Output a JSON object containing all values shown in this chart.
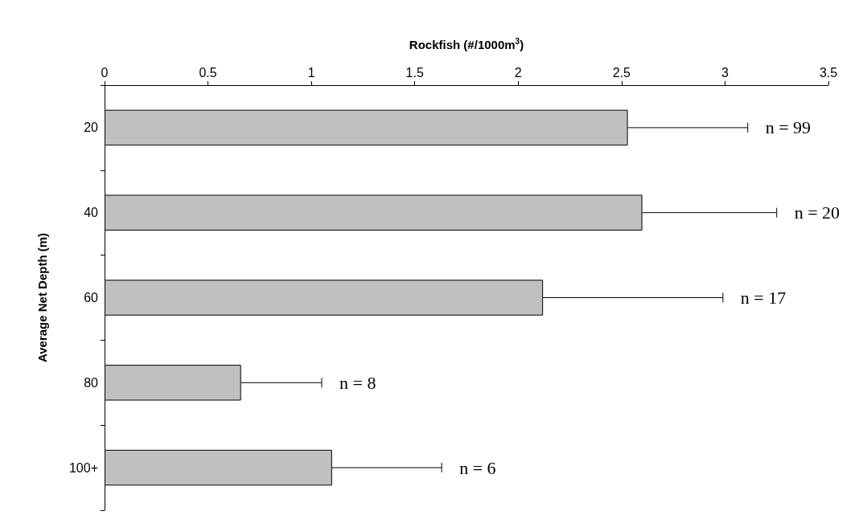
{
  "chart_data": {
    "type": "bar",
    "orientation": "horizontal",
    "xlabel": "Rockfish (#/1000m$^{3}$)",
    "ylabel": "Average Net Depth (m)",
    "categories": [
      "20",
      "40",
      "60",
      "80",
      "100+"
    ],
    "values": [
      2.53,
      2.6,
      2.12,
      0.66,
      1.1
    ],
    "color": "#c0c0c0",
    "errors": [
      [
        2.53,
        3.11
      ],
      [
        2.6,
        3.25
      ],
      [
        2.12,
        2.99
      ],
      [
        0.66,
        1.05
      ],
      [
        1.1,
        1.63
      ]
    ],
    "xlim": [
      0,
      3.5
    ],
    "xticks": [
      0,
      0.5,
      1,
      1.5,
      2,
      2.5,
      3,
      3.5
    ],
    "grid": false,
    "annotations": [
      "n = 99",
      "n = 20",
      "n = 17",
      "n = 8",
      "n = 6"
    ]
  }
}
